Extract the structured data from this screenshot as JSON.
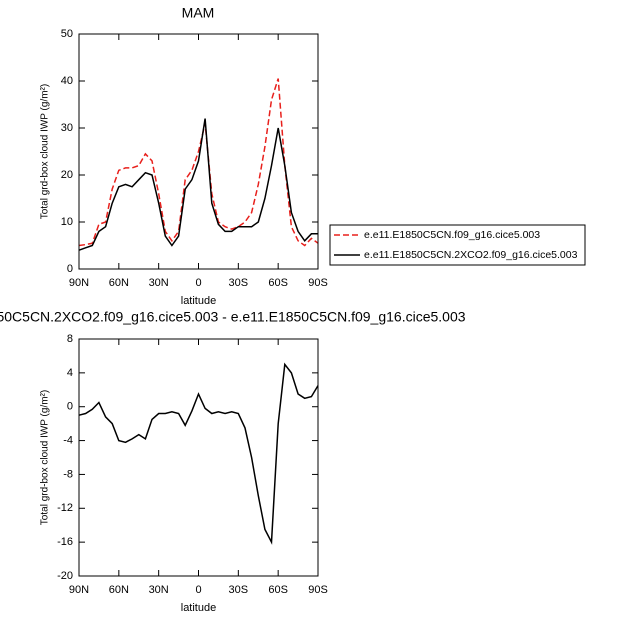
{
  "chart_data": [
    {
      "type": "line",
      "title": "MAM",
      "xlabel": "latitude",
      "ylabel": "Total grd-box cloud IWP (g/m²)",
      "x": [
        90,
        85,
        80,
        75,
        70,
        65,
        60,
        55,
        50,
        45,
        40,
        35,
        30,
        25,
        20,
        15,
        10,
        5,
        0,
        -5,
        -10,
        -15,
        -20,
        -25,
        -30,
        -35,
        -40,
        -45,
        -50,
        -55,
        -60,
        -65,
        -70,
        -75,
        -80,
        -85,
        -90
      ],
      "xlim": [
        90,
        -90
      ],
      "xticks": [
        {
          "value": 90,
          "label": "90N"
        },
        {
          "value": 60,
          "label": "60N"
        },
        {
          "value": 30,
          "label": "30N"
        },
        0,
        {
          "value": -30,
          "label": "30S"
        },
        {
          "value": -60,
          "label": "60S"
        },
        {
          "value": -90,
          "label": "90S"
        }
      ],
      "ylim": [
        0,
        50
      ],
      "yticks": [
        0,
        10,
        20,
        30,
        40,
        50
      ],
      "legend": "right",
      "series": [
        {
          "name": "e.e11.E1850C5CN.f09_g16.cice5.003",
          "color": "#e8201c",
          "dash": true,
          "values": [
            5,
            5.2,
            5.5,
            9.5,
            10,
            17,
            21,
            21.5,
            21.5,
            22,
            24.5,
            23,
            16,
            8,
            6,
            8,
            19,
            21,
            25,
            31,
            16,
            10,
            9,
            8.5,
            9,
            10,
            12,
            18,
            26,
            36,
            40.5,
            22,
            9,
            6,
            5,
            6.5,
            5.5
          ]
        },
        {
          "name": "e.e11.E1850C5CN.2XCO2.f09_g16.cice5.003",
          "color": "#000000",
          "dash": false,
          "values": [
            4,
            4.5,
            5,
            8,
            9,
            14,
            17.5,
            18,
            17.5,
            19,
            20.5,
            20,
            14,
            7,
            5,
            7,
            17,
            19,
            23,
            32,
            14,
            9.5,
            8,
            8,
            9,
            9,
            9,
            10,
            15,
            22,
            30,
            22,
            12,
            8,
            6,
            7.5,
            7.5
          ]
        }
      ]
    },
    {
      "type": "line",
      "title": "50C5CN.2XCO2.f09_g16.cice5.003 - e.e11.E1850C5CN.f09_g16.cice5.003",
      "xlabel": "latitude",
      "ylabel": "Total grd-box cloud IWP (g/m²)",
      "x": [
        90,
        85,
        80,
        75,
        70,
        65,
        60,
        55,
        50,
        45,
        40,
        35,
        30,
        25,
        20,
        15,
        10,
        5,
        0,
        -5,
        -10,
        -15,
        -20,
        -25,
        -30,
        -35,
        -40,
        -45,
        -50,
        -55,
        -60,
        -65,
        -70,
        -75,
        -80,
        -85,
        -90
      ],
      "xlim": [
        90,
        -90
      ],
      "xticks": [
        {
          "value": 90,
          "label": "90N"
        },
        {
          "value": 60,
          "label": "60N"
        },
        {
          "value": 30,
          "label": "30N"
        },
        0,
        {
          "value": -30,
          "label": "30S"
        },
        {
          "value": -60,
          "label": "60S"
        },
        {
          "value": -90,
          "label": "90S"
        }
      ],
      "ylim": [
        -20,
        8
      ],
      "yticks": [
        -20,
        -16,
        -12,
        -8,
        -4,
        0,
        4,
        8
      ],
      "series": [
        {
          "color": "#000000",
          "dash": false,
          "values": [
            -1,
            -0.8,
            -0.3,
            0.5,
            -1.2,
            -2,
            -4,
            -4.2,
            -3.8,
            -3.3,
            -3.8,
            -1.5,
            -0.8,
            -0.8,
            -0.6,
            -0.8,
            -2.2,
            -0.5,
            1.5,
            -0.2,
            -0.8,
            -0.6,
            -0.8,
            -0.6,
            -0.8,
            -2.5,
            -6,
            -10.5,
            -14.5,
            -16,
            -2,
            5,
            4,
            1.5,
            1,
            1.2,
            2.5
          ]
        }
      ]
    }
  ]
}
